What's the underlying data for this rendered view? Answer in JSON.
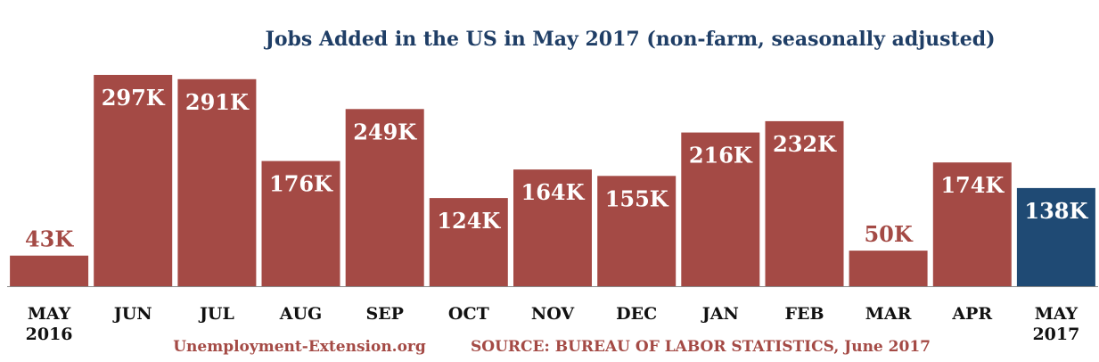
{
  "chart_data": {
    "type": "bar",
    "title": "Jobs Added in the US in May 2017 (non-farm, seasonally adjusted)",
    "categories": [
      [
        "MAY",
        "2016"
      ],
      [
        "JUN"
      ],
      [
        "JUL"
      ],
      [
        "AUG"
      ],
      [
        "SEP"
      ],
      [
        "OCT"
      ],
      [
        "NOV"
      ],
      [
        "DEC"
      ],
      [
        "JAN"
      ],
      [
        "FEB"
      ],
      [
        "MAR"
      ],
      [
        "APR"
      ],
      [
        "MAY",
        "2017"
      ]
    ],
    "values": [
      43,
      297,
      291,
      176,
      249,
      124,
      164,
      155,
      216,
      232,
      50,
      174,
      138
    ],
    "data_labels": [
      "43K",
      "297K",
      "291K",
      "176K",
      "249K",
      "124K",
      "164K",
      "155K",
      "216K",
      "232K",
      "50K",
      "174K",
      "138K"
    ],
    "units": "thousands of jobs",
    "ylim": [
      0,
      297
    ],
    "highlight_index": 12,
    "grid": false,
    "legend": "none",
    "colors": {
      "bar": "#a44a45",
      "highlight": "#1f4a74",
      "title": "#1f3e66",
      "label_on_bar": "#ffffff",
      "label_above_bar": "#a44a45",
      "footer": "#a44a45",
      "baseline": "#888888"
    }
  },
  "footer": {
    "site": "Unemployment-Extension.org",
    "source": "SOURCE: BUREAU OF LABOR STATISTICS, June 2017"
  }
}
